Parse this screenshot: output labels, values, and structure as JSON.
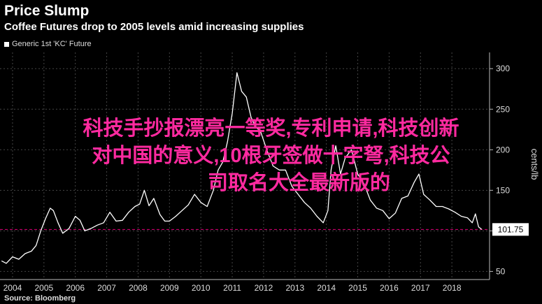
{
  "title": "Price Slump",
  "subtitle": "Coffee Futures drop to 2005 levels amid increasing supplies",
  "legend_label": "Generic 1st 'KC' Future",
  "source": "Source: Bloomberg",
  "overlay": {
    "line1": "科技手抄报漂亮一等奖,专利申请,科技创新",
    "line2": "对中国的意义,10根牙签做十字弩,科技公",
    "line3": "司取名大全最新版的"
  },
  "colors": {
    "background": "#000000",
    "line": "#ffffff",
    "reference": "#e0007a",
    "overlay": "#ff2aa0"
  },
  "chart_data": {
    "type": "line",
    "ylabel": "cents/lb",
    "ylim": [
      40,
      320
    ],
    "yticks": [
      50,
      100,
      150,
      200,
      250,
      300
    ],
    "xlim": [
      2003.6,
      2019.2
    ],
    "xticks": [
      2004,
      2005,
      2006,
      2007,
      2008,
      2009,
      2010,
      2011,
      2012,
      2013,
      2014,
      2015,
      2016,
      2017,
      2018
    ],
    "last_value_label": "101.75",
    "reference_line": 101.75,
    "series": [
      {
        "name": "Generic 1st 'KC' Future",
        "x": [
          2003.65,
          2003.8,
          2004.0,
          2004.2,
          2004.4,
          2004.6,
          2004.75,
          2004.9,
          2005.05,
          2005.2,
          2005.3,
          2005.45,
          2005.6,
          2005.8,
          2006.0,
          2006.15,
          2006.3,
          2006.5,
          2006.7,
          2006.9,
          2007.1,
          2007.3,
          2007.5,
          2007.7,
          2007.9,
          2008.05,
          2008.2,
          2008.35,
          2008.5,
          2008.7,
          2008.85,
          2009.0,
          2009.2,
          2009.4,
          2009.6,
          2009.8,
          2010.0,
          2010.2,
          2010.4,
          2010.55,
          2010.7,
          2010.85,
          2011.0,
          2011.15,
          2011.3,
          2011.45,
          2011.6,
          2011.75,
          2011.9,
          2012.1,
          2012.3,
          2012.5,
          2012.7,
          2012.9,
          2013.1,
          2013.3,
          2013.5,
          2013.7,
          2013.9,
          2014.05,
          2014.15,
          2014.3,
          2014.45,
          2014.6,
          2014.8,
          2015.0,
          2015.2,
          2015.4,
          2015.6,
          2015.8,
          2016.0,
          2016.2,
          2016.4,
          2016.6,
          2016.8,
          2016.95,
          2017.1,
          2017.3,
          2017.5,
          2017.7,
          2017.9,
          2018.1,
          2018.3,
          2018.5,
          2018.65,
          2018.75,
          2018.85,
          2018.95
        ],
        "values": [
          63,
          60,
          68,
          65,
          72,
          75,
          82,
          100,
          115,
          128,
          125,
          110,
          97,
          103,
          118,
          113,
          100,
          103,
          107,
          110,
          123,
          112,
          113,
          123,
          130,
          133,
          150,
          131,
          140,
          120,
          112,
          112,
          118,
          125,
          132,
          145,
          135,
          130,
          150,
          175,
          185,
          210,
          245,
          295,
          272,
          265,
          240,
          228,
          223,
          200,
          180,
          175,
          175,
          155,
          145,
          135,
          128,
          118,
          110,
          125,
          175,
          205,
          170,
          190,
          200,
          170,
          158,
          138,
          128,
          125,
          115,
          122,
          140,
          143,
          160,
          170,
          145,
          138,
          130,
          130,
          127,
          123,
          118,
          116,
          110,
          121,
          105,
          101.75
        ]
      }
    ]
  }
}
